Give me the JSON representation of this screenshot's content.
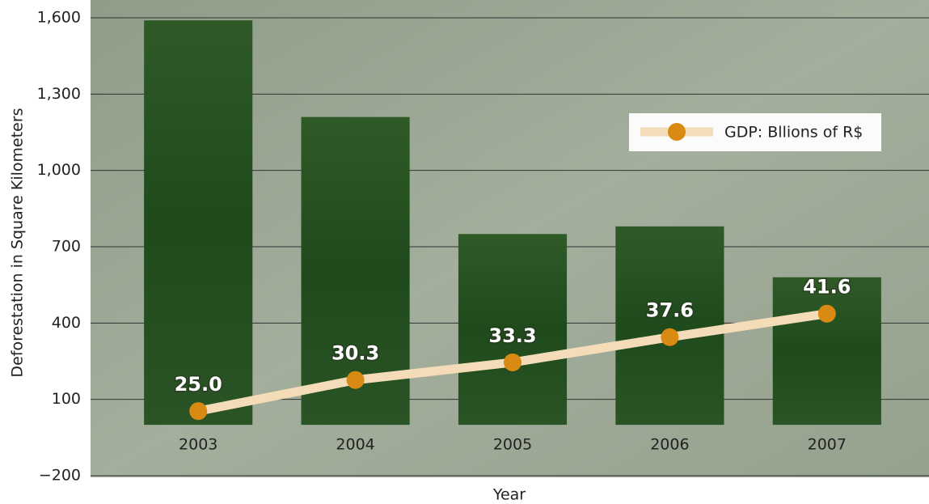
{
  "chart_data": {
    "type": "bar",
    "x_label": "Year",
    "y_label": "Deforestation in Square Kilometers",
    "categories": [
      "2003",
      "2004",
      "2005",
      "2006",
      "2007"
    ],
    "series": [
      {
        "type": "bar",
        "color": "#1f4a1c",
        "values": [
          1590,
          1210,
          750,
          780,
          580
        ]
      },
      {
        "type": "line",
        "name": "GDP: Bllions of R$",
        "color": "#f5dcb8",
        "marker_color": "#d98a12",
        "axis": "y2",
        "values": [
          25.0,
          30.3,
          33.3,
          37.6,
          41.6
        ],
        "value_labels": [
          "25.0",
          "30.3",
          "33.3",
          "37.6",
          "41.6"
        ]
      }
    ],
    "ylim": [
      -200,
      1600
    ],
    "yticks": [
      {
        "value": -200,
        "label": "−200"
      },
      100,
      400,
      700,
      {
        "value": 1000,
        "label": "1,000"
      },
      {
        "value": 1300,
        "label": "1,300"
      },
      {
        "value": 1600,
        "label": "1,600"
      }
    ],
    "y2lim": [
      14,
      92
    ],
    "grid": true,
    "legend": "upper right"
  }
}
